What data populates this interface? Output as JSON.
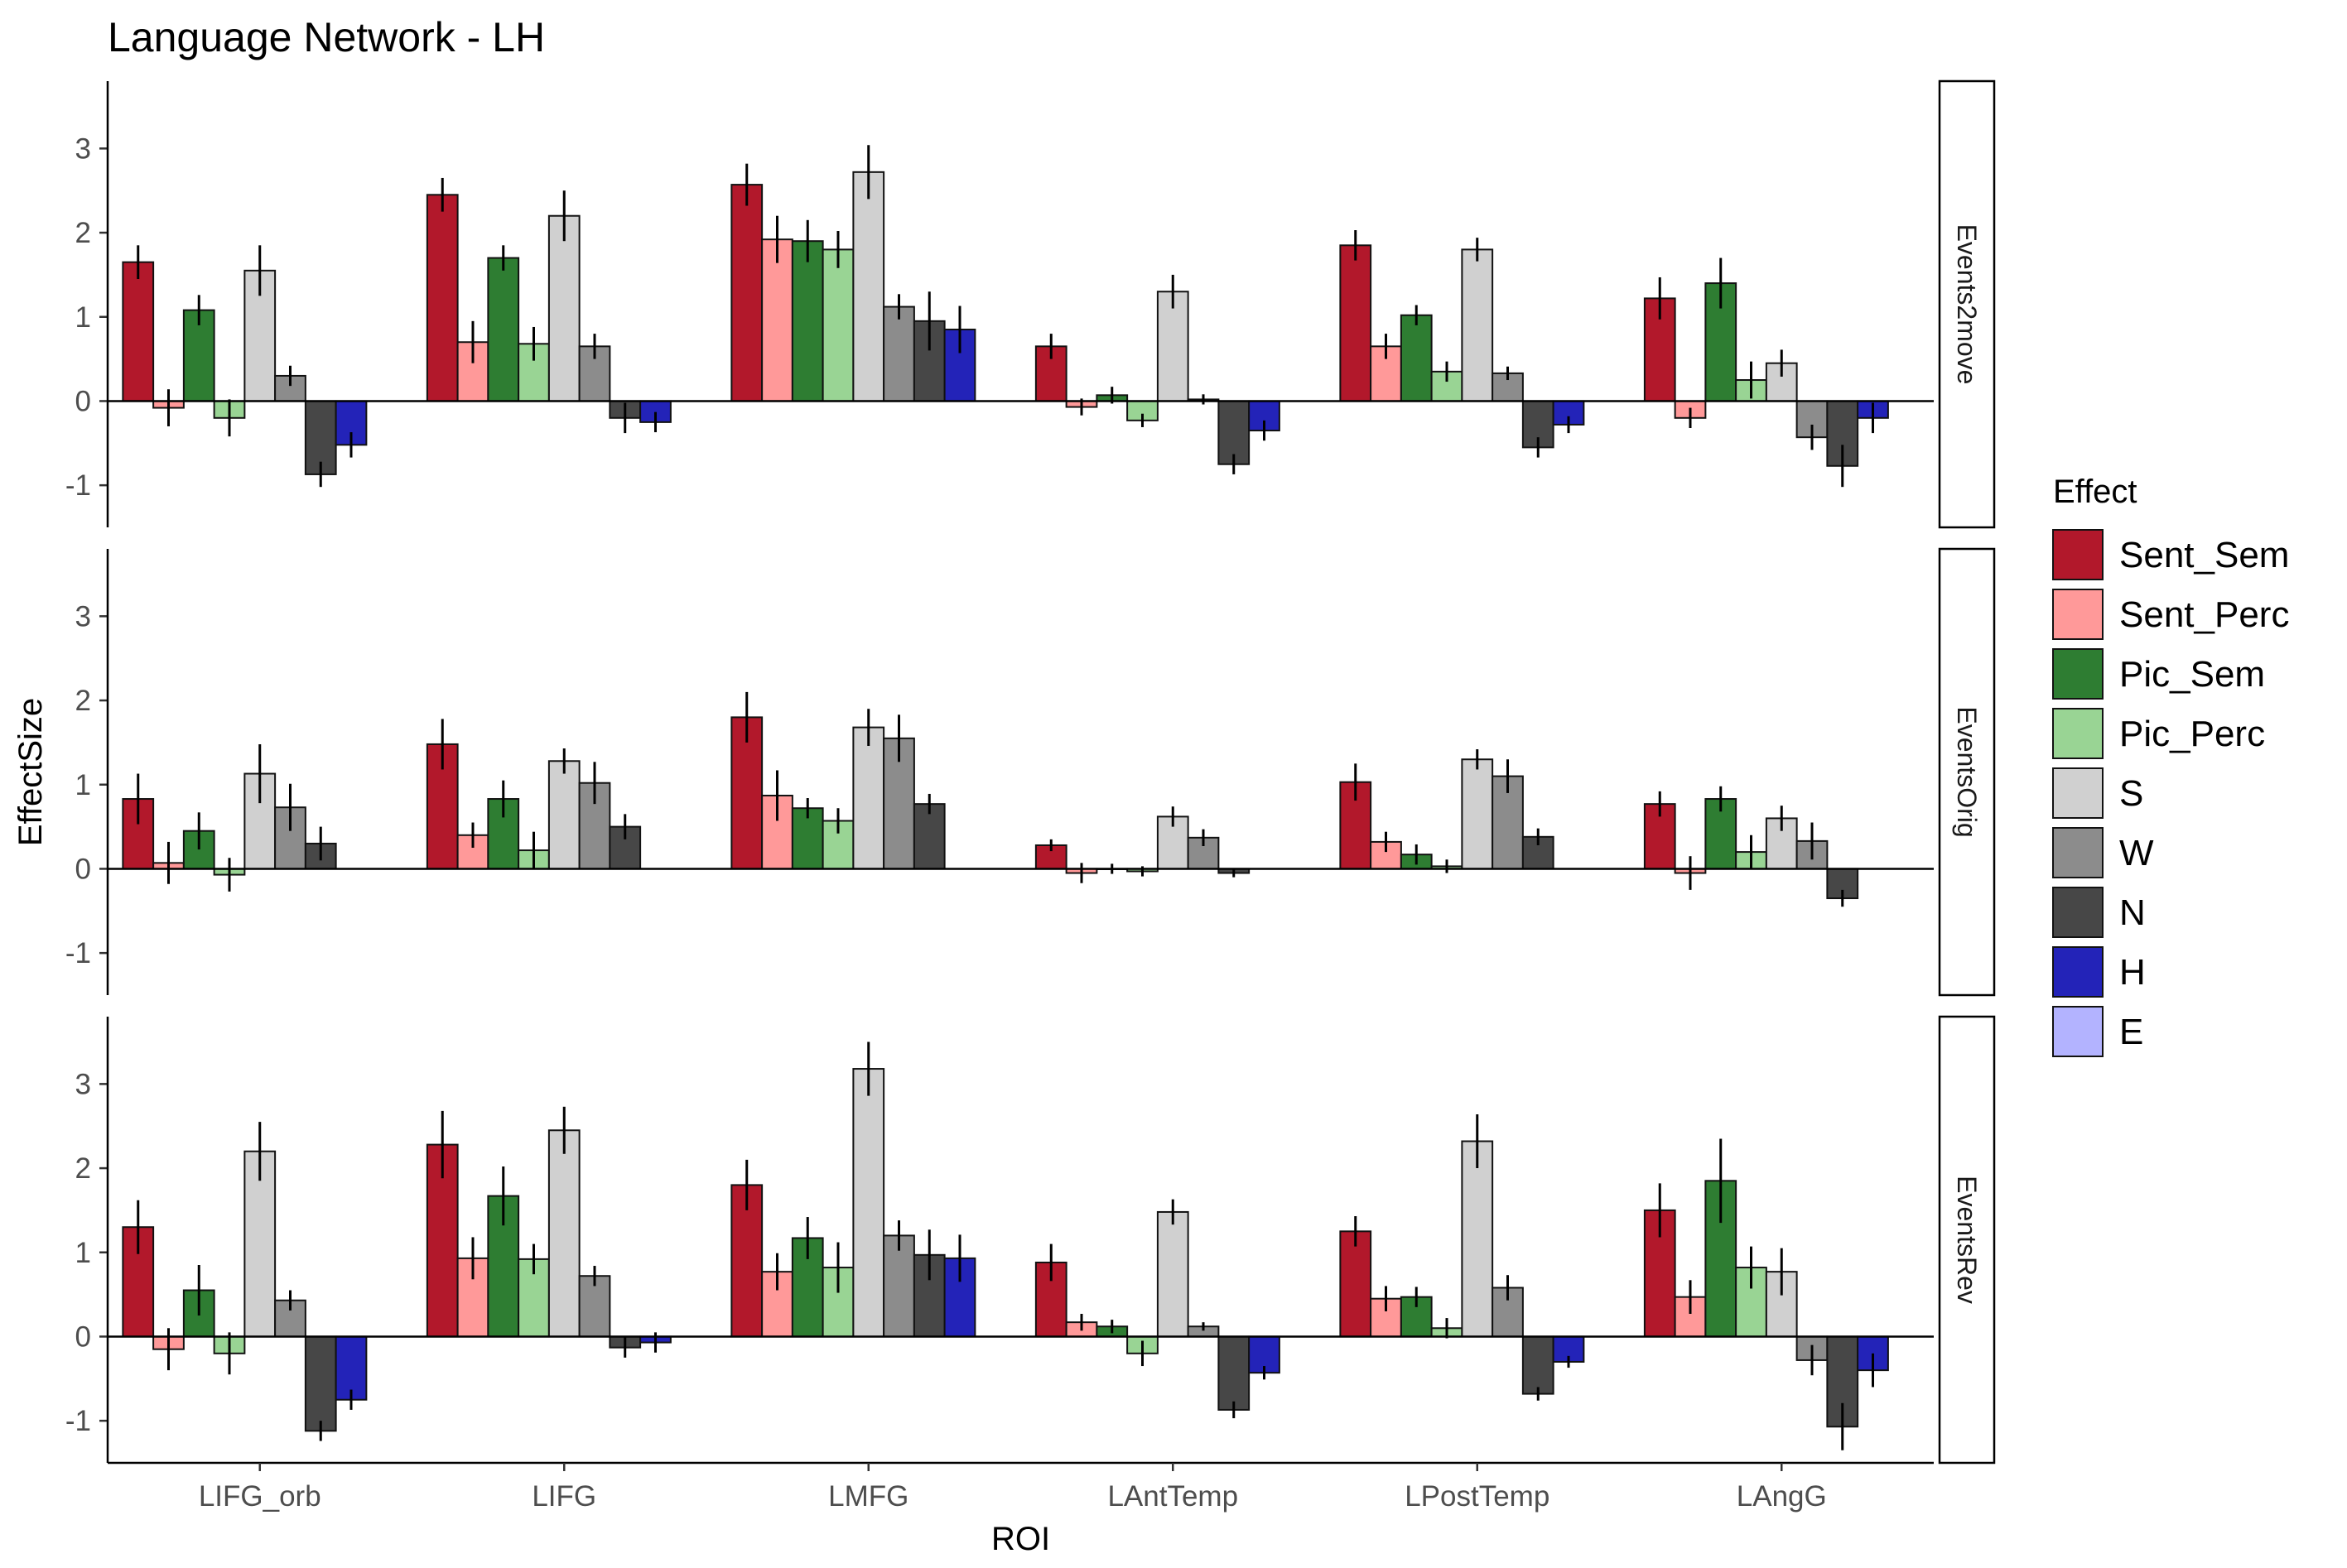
{
  "chart_data": {
    "type": "bar",
    "title": "Language Network - LH",
    "xlabel": "ROI",
    "ylabel": "EffectSize",
    "ylim": [
      -1.5,
      3.8
    ],
    "yticks": [
      -1,
      0,
      1,
      2,
      3
    ],
    "ytick_labels": [
      "-1",
      "0",
      "1",
      "2",
      "3"
    ],
    "grid": false,
    "legend_position": "right",
    "legend_title": "Effect",
    "categories": [
      "LIFG_orb",
      "LIFG",
      "LMFG",
      "LAntTemp",
      "LPostTemp",
      "LAngG"
    ],
    "series": [
      {
        "name": "Sent_Sem",
        "color": "#b2182b"
      },
      {
        "name": "Sent_Perc",
        "color": "#ff9999"
      },
      {
        "name": "Pic_Sem",
        "color": "#2e7d32"
      },
      {
        "name": "Pic_Perc",
        "color": "#99d494"
      },
      {
        "name": "S",
        "color": "#d0d0d0"
      },
      {
        "name": "W",
        "color": "#8c8c8c"
      },
      {
        "name": "N",
        "color": "#474747"
      },
      {
        "name": "H",
        "color": "#2323b8"
      },
      {
        "name": "E",
        "color": "#b3b3ff"
      }
    ],
    "panels": [
      {
        "label": "Events2move",
        "values": [
          [
            1.65,
            -0.08,
            1.08,
            -0.2,
            1.55,
            0.3,
            -0.87,
            -0.52,
            null
          ],
          [
            2.45,
            0.7,
            1.7,
            0.68,
            2.2,
            0.65,
            -0.2,
            -0.25,
            null
          ],
          [
            2.57,
            1.92,
            1.9,
            1.8,
            2.72,
            1.12,
            0.95,
            0.85,
            null
          ],
          [
            0.65,
            -0.07,
            0.07,
            -0.23,
            1.3,
            0.02,
            -0.75,
            -0.35,
            null
          ],
          [
            1.85,
            0.65,
            1.02,
            0.35,
            1.8,
            0.33,
            -0.55,
            -0.28,
            null
          ],
          [
            1.22,
            -0.2,
            1.4,
            0.25,
            0.45,
            -0.43,
            -0.77,
            -0.2,
            null
          ]
        ],
        "errors": [
          [
            0.2,
            0.22,
            0.18,
            0.22,
            0.3,
            0.12,
            0.15,
            0.15,
            null
          ],
          [
            0.2,
            0.25,
            0.15,
            0.2,
            0.3,
            0.15,
            0.18,
            0.12,
            null
          ],
          [
            0.25,
            0.28,
            0.25,
            0.22,
            0.32,
            0.15,
            0.35,
            0.28,
            null
          ],
          [
            0.15,
            0.1,
            0.1,
            0.08,
            0.2,
            0.06,
            0.12,
            0.12,
            null
          ],
          [
            0.18,
            0.15,
            0.12,
            0.12,
            0.14,
            0.08,
            0.12,
            0.1,
            null
          ],
          [
            0.25,
            0.12,
            0.3,
            0.22,
            0.16,
            0.15,
            0.25,
            0.18,
            null
          ]
        ]
      },
      {
        "label": "EventsOrig",
        "values": [
          [
            0.83,
            0.07,
            0.45,
            -0.07,
            1.13,
            0.73,
            0.3,
            null,
            null
          ],
          [
            1.48,
            0.4,
            0.83,
            0.22,
            1.28,
            1.02,
            0.5,
            null,
            null
          ],
          [
            1.8,
            0.87,
            0.72,
            0.57,
            1.68,
            1.55,
            0.77,
            null,
            null
          ],
          [
            0.28,
            -0.05,
            0.0,
            -0.03,
            0.62,
            0.37,
            -0.05,
            null,
            null
          ],
          [
            1.03,
            0.32,
            0.17,
            0.03,
            1.3,
            1.1,
            0.38,
            null,
            null
          ],
          [
            0.77,
            -0.05,
            0.83,
            0.2,
            0.6,
            0.33,
            -0.35,
            null,
            null
          ]
        ],
        "errors": [
          [
            0.3,
            0.25,
            0.22,
            0.2,
            0.35,
            0.28,
            0.2,
            null,
            null
          ],
          [
            0.3,
            0.15,
            0.22,
            0.22,
            0.15,
            0.25,
            0.15,
            null,
            null
          ],
          [
            0.3,
            0.3,
            0.12,
            0.15,
            0.22,
            0.28,
            0.12,
            null,
            null
          ],
          [
            0.07,
            0.12,
            0.06,
            0.06,
            0.12,
            0.1,
            0.05,
            null,
            null
          ],
          [
            0.22,
            0.12,
            0.12,
            0.08,
            0.12,
            0.2,
            0.1,
            null,
            null
          ],
          [
            0.15,
            0.2,
            0.15,
            0.2,
            0.15,
            0.22,
            0.1,
            null,
            null
          ]
        ]
      },
      {
        "label": "EventsRev",
        "values": [
          [
            1.3,
            -0.15,
            0.55,
            -0.2,
            2.2,
            0.43,
            -1.12,
            -0.75,
            null
          ],
          [
            2.28,
            0.93,
            1.67,
            0.92,
            2.45,
            0.72,
            -0.13,
            -0.07,
            null
          ],
          [
            1.8,
            0.77,
            1.17,
            0.82,
            3.18,
            1.2,
            0.97,
            0.93,
            null
          ],
          [
            0.88,
            0.17,
            0.12,
            -0.2,
            1.48,
            0.12,
            -0.87,
            -0.43,
            null
          ],
          [
            1.25,
            0.45,
            0.47,
            0.1,
            2.32,
            0.58,
            -0.68,
            -0.3,
            null
          ],
          [
            1.5,
            0.47,
            1.85,
            0.82,
            0.77,
            -0.28,
            -1.07,
            -0.4,
            null
          ]
        ],
        "errors": [
          [
            0.32,
            0.25,
            0.3,
            0.25,
            0.35,
            0.12,
            0.12,
            0.12,
            null
          ],
          [
            0.4,
            0.25,
            0.35,
            0.18,
            0.28,
            0.12,
            0.12,
            0.12,
            null
          ],
          [
            0.3,
            0.22,
            0.25,
            0.3,
            0.32,
            0.18,
            0.3,
            0.28,
            null
          ],
          [
            0.22,
            0.1,
            0.08,
            0.15,
            0.15,
            0.05,
            0.1,
            0.08,
            null
          ],
          [
            0.18,
            0.15,
            0.12,
            0.12,
            0.32,
            0.15,
            0.08,
            0.07,
            null
          ],
          [
            0.32,
            0.2,
            0.5,
            0.25,
            0.28,
            0.18,
            0.28,
            0.2,
            null
          ]
        ]
      }
    ]
  }
}
